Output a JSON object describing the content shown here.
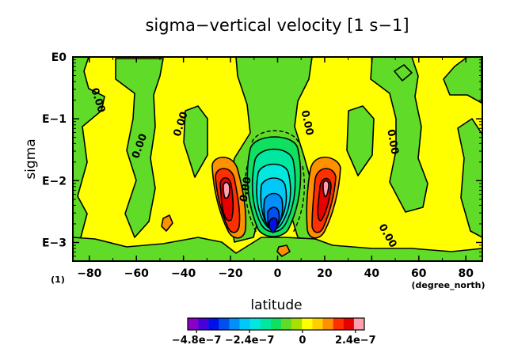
{
  "chart_data": {
    "type": "heatmap",
    "title": "sigma−vertical velocity [1 s−1]",
    "xlabel": "latitude",
    "ylabel": "sigma",
    "x_unit_label": "(degree_north)",
    "y_unit_label": "(1)",
    "xlim": [
      -87,
      87
    ],
    "x_ticks": [
      -80,
      -60,
      -40,
      -20,
      0,
      20,
      40,
      60,
      80
    ],
    "x_tick_labels": [
      "−80",
      "−60",
      "−40",
      "−20",
      "0",
      "20",
      "40",
      "60",
      "80"
    ],
    "y_scale": "log",
    "ylim": [
      1,
      0.0005
    ],
    "y_ticks": [
      1,
      0.1,
      0.01,
      0.001
    ],
    "y_tick_labels": [
      "E0",
      "E−1",
      "E−2",
      "E−3"
    ],
    "contour_labels": [
      "0.00",
      "0.00",
      "0.00",
      "0.00",
      "0.00",
      "0.00",
      "0.00"
    ],
    "colorbar": {
      "min": -5.2e-07,
      "max": 2.8e-07,
      "step": 4e-08,
      "tick_values": [
        -4.8e-07,
        -2.4e-07,
        0,
        2.4e-07
      ],
      "tick_labels": [
        "−4.8e−7",
        "−2.4e−7",
        "0",
        "2.4e−7"
      ],
      "colors": [
        "#8a00c8",
        "#4800d8",
        "#0010ec",
        "#0050f0",
        "#0090f8",
        "#00c8f8",
        "#00e8e0",
        "#00e8a0",
        "#10e060",
        "#60dc28",
        "#a8e000",
        "#ffff00",
        "#ffd000",
        "#ff9000",
        "#ff3000",
        "#e80000",
        "#ffa0b0"
      ]
    }
  }
}
